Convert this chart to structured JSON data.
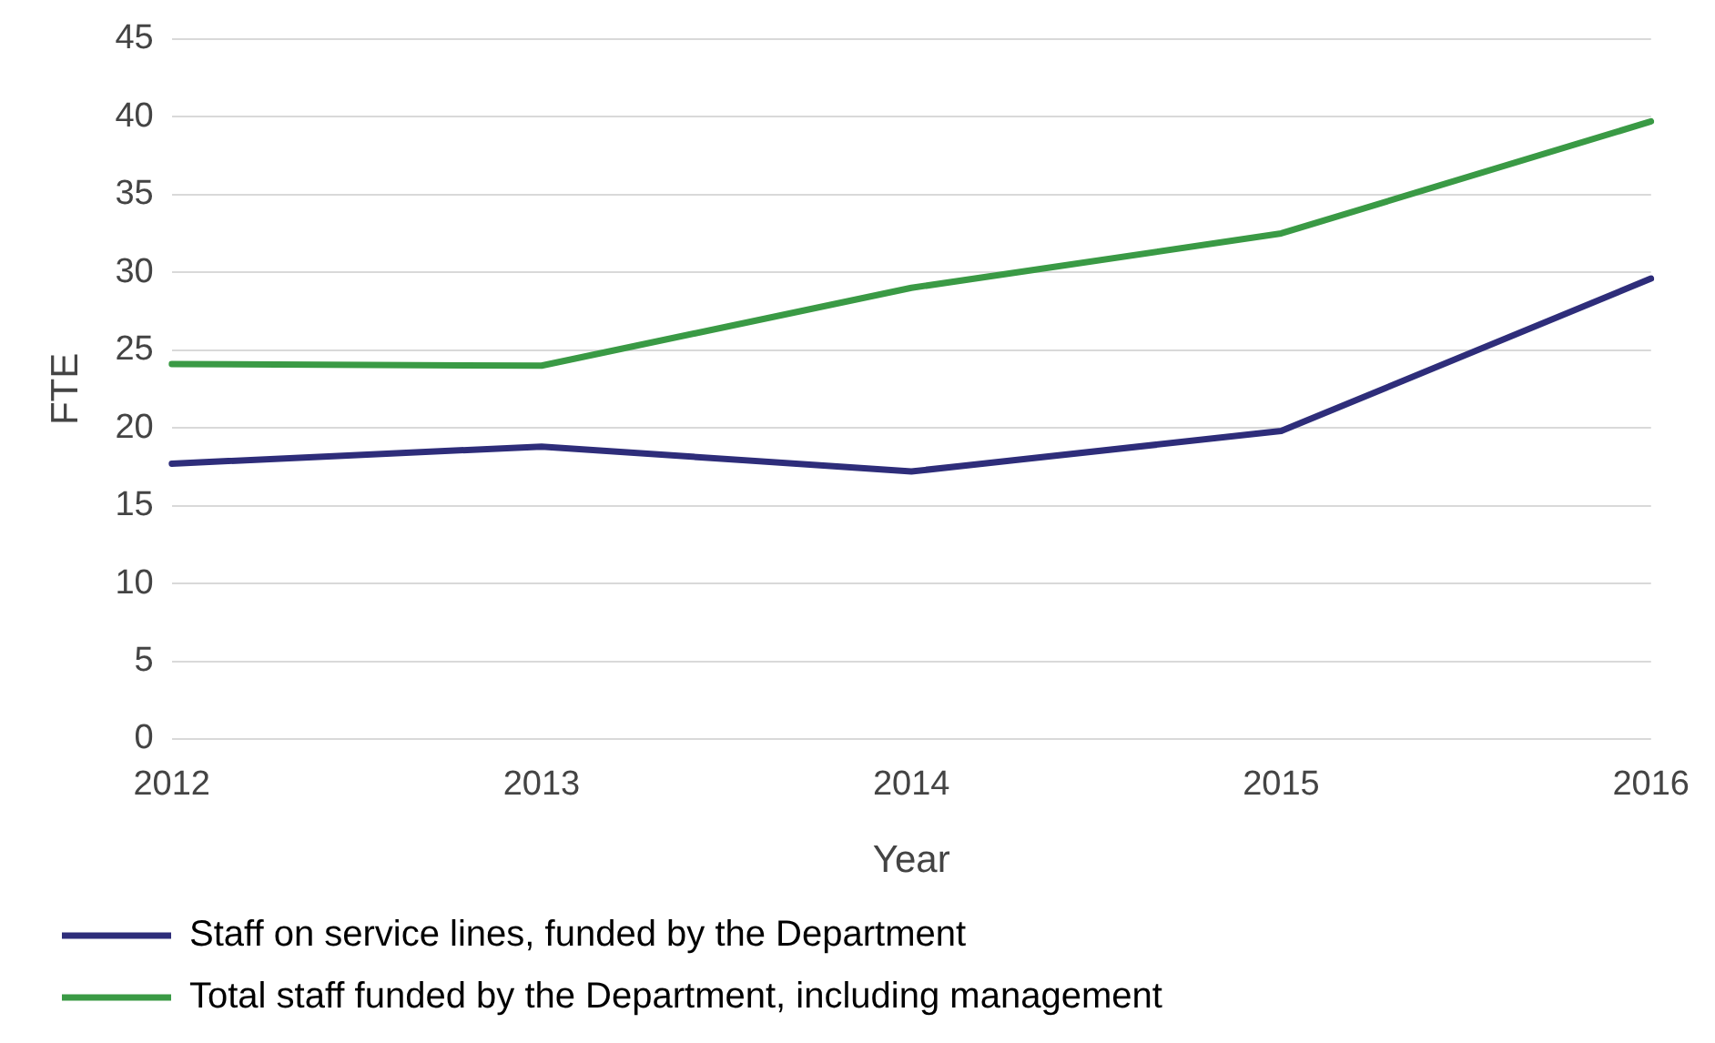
{
  "chart_data": {
    "type": "line",
    "xlabel": "Year",
    "ylabel": "FTE",
    "categories": [
      "2012",
      "2013",
      "2014",
      "2015",
      "2016"
    ],
    "series": [
      {
        "name": "Staff on service lines, funded by the Department",
        "color": "#2e2d7a",
        "values": [
          17.7,
          18.8,
          17.2,
          19.8,
          29.6
        ]
      },
      {
        "name": "Total staff funded by the Department, including management",
        "color": "#3a9a45",
        "values": [
          24.1,
          24.0,
          29.0,
          32.5,
          39.7
        ]
      }
    ],
    "ylim": [
      0,
      45
    ],
    "yticks": [
      0,
      5,
      10,
      15,
      20,
      25,
      30,
      35,
      40,
      45
    ],
    "grid": "y",
    "legend": "bottom",
    "marker": "none",
    "line_style": "solid"
  }
}
